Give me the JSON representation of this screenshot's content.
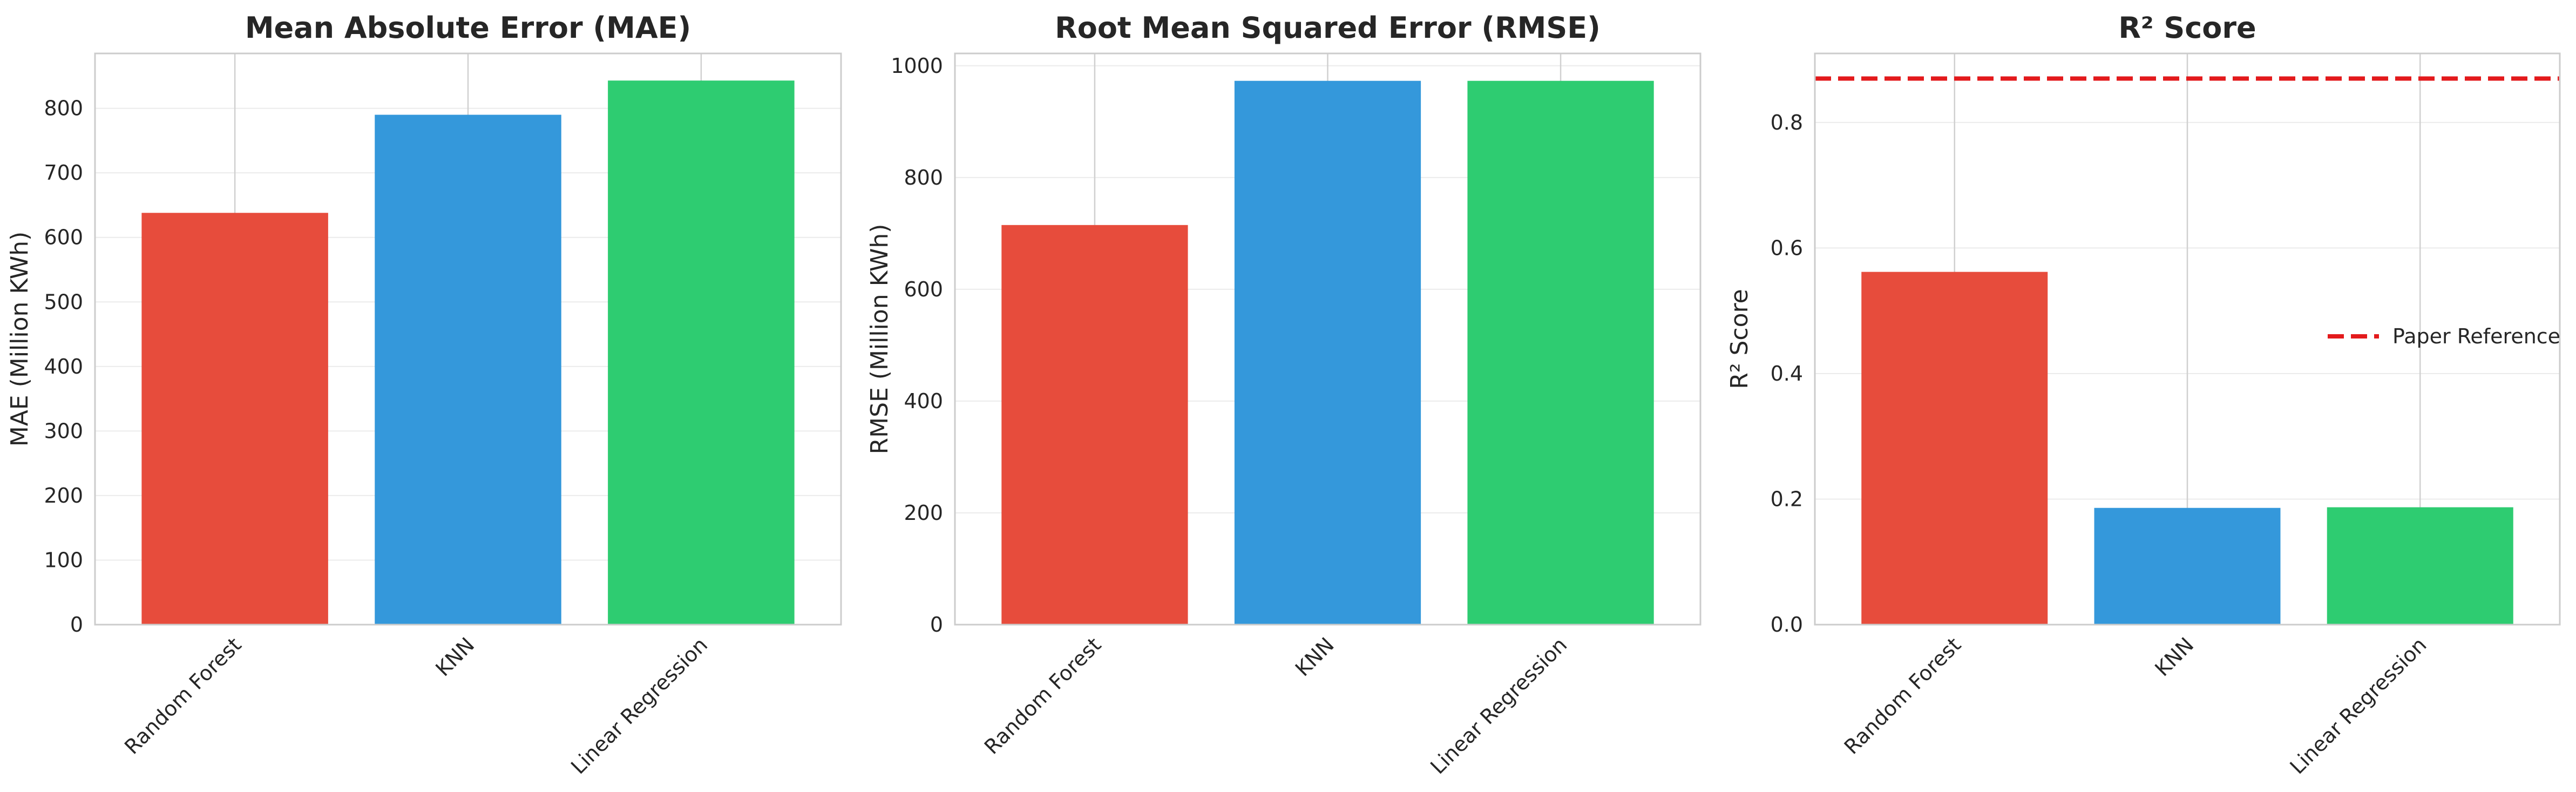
{
  "chart_data": [
    {
      "type": "bar",
      "title": "Mean Absolute Error (MAE)",
      "xlabel": "",
      "ylabel": "MAE (Million KWh)",
      "categories": [
        "Random Forest",
        "KNN",
        "Linear Regression"
      ],
      "values": [
        638,
        790,
        843
      ],
      "colors": [
        "#e74c3c",
        "#3498db",
        "#2ecc71"
      ],
      "ylim": [
        0,
        885
      ],
      "yticks": [
        0,
        100,
        200,
        300,
        400,
        500,
        600,
        700,
        800
      ],
      "ytick_labels": [
        "0",
        "100",
        "200",
        "300",
        "400",
        "500",
        "600",
        "700",
        "800"
      ],
      "grid": true
    },
    {
      "type": "bar",
      "title": "Root Mean Squared Error (RMSE)",
      "xlabel": "",
      "ylabel": "RMSE (Million KWh)",
      "categories": [
        "Random Forest",
        "KNN",
        "Linear Regression"
      ],
      "values": [
        715,
        973,
        973
      ],
      "colors": [
        "#e74c3c",
        "#3498db",
        "#2ecc71"
      ],
      "ylim": [
        0,
        1022
      ],
      "yticks": [
        0,
        200,
        400,
        600,
        800,
        1000
      ],
      "ytick_labels": [
        "0",
        "200",
        "400",
        "600",
        "800",
        "1000"
      ],
      "grid": true
    },
    {
      "type": "bar",
      "title": "R² Score",
      "xlabel": "",
      "ylabel": "R² Score",
      "categories": [
        "Random Forest",
        "KNN",
        "Linear Regression"
      ],
      "values": [
        0.562,
        0.186,
        0.187
      ],
      "colors": [
        "#e74c3c",
        "#3498db",
        "#2ecc71"
      ],
      "ylim": [
        0,
        0.91
      ],
      "yticks": [
        0,
        0.2,
        0.4,
        0.6,
        0.8
      ],
      "ytick_labels": [
        "0.0",
        "0.2",
        "0.4",
        "0.6",
        "0.8"
      ],
      "grid": true,
      "reference_line": {
        "value": 0.87,
        "label": "Paper Reference",
        "color": "#e31a1c",
        "style": "dashed"
      },
      "legend": {
        "placement": "center-right",
        "entries": [
          "Paper Reference"
        ]
      }
    }
  ]
}
